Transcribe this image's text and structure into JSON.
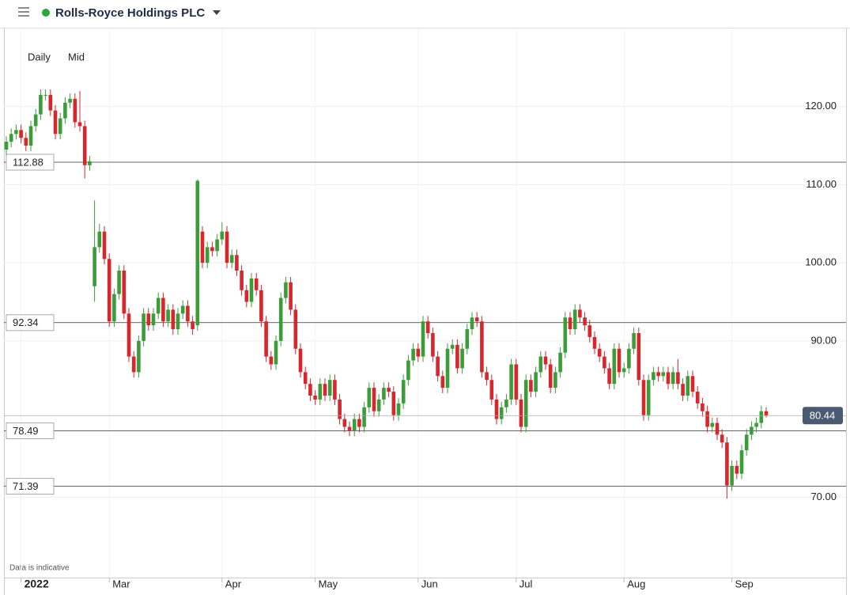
{
  "header": {
    "title": "Rolls-Royce Holdings PLC"
  },
  "chart_data": {
    "type": "candlestick",
    "interval": "Daily",
    "price_type": "Mid",
    "note": "Data is indicative",
    "up_color": "#3d9c3a",
    "down_color": "#d8262d",
    "ylim": [
      59.7,
      129.9
    ],
    "yticks": [
      {
        "value": 70,
        "label": "70.00"
      },
      {
        "value": 90,
        "label": "90.00"
      },
      {
        "value": 100,
        "label": "100.00"
      },
      {
        "value": 110,
        "label": "110.00"
      },
      {
        "value": 120,
        "label": "120.00"
      }
    ],
    "xticks": [
      {
        "value": 3,
        "label": "2022"
      },
      {
        "value": 21,
        "label": "Mar"
      },
      {
        "value": 44,
        "label": "Apr"
      },
      {
        "value": 63,
        "label": "May"
      },
      {
        "value": 84,
        "label": "Jun"
      },
      {
        "value": 104,
        "label": "Jul"
      },
      {
        "value": 126,
        "label": "Aug"
      },
      {
        "value": 148,
        "label": "Sep"
      }
    ],
    "levels": [
      112.88,
      92.34,
      78.49,
      71.39
    ],
    "last_price": 80.44,
    "ohlc": [
      [
        114.5,
        116.2,
        113.8,
        115.5
      ],
      [
        115.5,
        117.2,
        114.8,
        116.5
      ],
      [
        116.5,
        117.7,
        115.8,
        117
      ],
      [
        117,
        117.7,
        115.3,
        116
      ],
      [
        116,
        116.7,
        114.3,
        115
      ],
      [
        115,
        118.2,
        114.3,
        117.5
      ],
      [
        117.5,
        119.7,
        116.8,
        119
      ],
      [
        119,
        122.2,
        118.3,
        121.5
      ],
      [
        121.5,
        122.2,
        120.8,
        121.5
      ],
      [
        121.5,
        122.2,
        118.8,
        119.5
      ],
      [
        119.5,
        120.2,
        115.8,
        116.5
      ],
      [
        116.5,
        119.2,
        115.8,
        118.5
      ],
      [
        118.5,
        121.2,
        117.8,
        120.5
      ],
      [
        120.5,
        121.7,
        119.8,
        121
      ],
      [
        121,
        121.7,
        117.3,
        118
      ],
      [
        118,
        122,
        116.8,
        117.5
      ],
      [
        117.5,
        118.2,
        110.8,
        112.5
      ],
      [
        112.5,
        113.7,
        111.8,
        113
      ],
      [
        97,
        108,
        95,
        102
      ],
      [
        102,
        105,
        101.3,
        104
      ],
      [
        104,
        104.7,
        99.8,
        100.5
      ],
      [
        100.5,
        101.2,
        91.8,
        92.5
      ],
      [
        92.5,
        96.7,
        91.8,
        96
      ],
      [
        96,
        99.7,
        95.3,
        99
      ],
      [
        99,
        99.7,
        92.8,
        93.5
      ],
      [
        93.5,
        94.2,
        87.3,
        88
      ],
      [
        88,
        88.7,
        85.3,
        86
      ],
      [
        86,
        90.7,
        85.3,
        90
      ],
      [
        90,
        94.2,
        89.3,
        93.5
      ],
      [
        93.5,
        94.2,
        91.3,
        92
      ],
      [
        92,
        94.2,
        91.3,
        93.5
      ],
      [
        93.5,
        96.2,
        92.8,
        95.5
      ],
      [
        95.5,
        96.2,
        91.8,
        92.5
      ],
      [
        92.5,
        94.7,
        91.8,
        94
      ],
      [
        94,
        94.7,
        90.8,
        91.5
      ],
      [
        91.5,
        94.2,
        90.8,
        93.5
      ],
      [
        93.5,
        95.2,
        92.8,
        94.5
      ],
      [
        94.5,
        95.2,
        91.8,
        92.5
      ],
      [
        92.5,
        93.2,
        90.8,
        91.5
      ],
      [
        92,
        110.7,
        91.3,
        110.5
      ],
      [
        104,
        104.7,
        99.3,
        100
      ],
      [
        100,
        102.7,
        99.3,
        102
      ],
      [
        102,
        102.7,
        100.8,
        101.5
      ],
      [
        101.5,
        103.7,
        100.8,
        103
      ],
      [
        103,
        105.2,
        102.3,
        104
      ],
      [
        104,
        104.7,
        99.3,
        100
      ],
      [
        100,
        101.7,
        99.3,
        101
      ],
      [
        101,
        101.7,
        98.3,
        99
      ],
      [
        99,
        99.7,
        95.8,
        96.5
      ],
      [
        96.5,
        97.2,
        94.3,
        95
      ],
      [
        95,
        98.7,
        94.3,
        98
      ],
      [
        98,
        98.7,
        95.8,
        96.5
      ],
      [
        96.5,
        97.2,
        91.8,
        92.5
      ],
      [
        92.5,
        93.2,
        87.3,
        88
      ],
      [
        88,
        88.7,
        86.3,
        87
      ],
      [
        87,
        90.7,
        86.3,
        90
      ],
      [
        90,
        96.2,
        89.3,
        95.5
      ],
      [
        95.5,
        98.2,
        94.8,
        97.5
      ],
      [
        97.5,
        98.2,
        93.3,
        94
      ],
      [
        94,
        94.7,
        88.3,
        89
      ],
      [
        89,
        89.7,
        85.3,
        86
      ],
      [
        86,
        86.7,
        83.8,
        84.5
      ],
      [
        84.5,
        85.2,
        82.3,
        83
      ],
      [
        83,
        83.7,
        81.8,
        82.5
      ],
      [
        82.5,
        85.2,
        81.8,
        84.5
      ],
      [
        84.5,
        85.2,
        82.3,
        83
      ],
      [
        83,
        85.7,
        82.3,
        85
      ],
      [
        85,
        85.7,
        81.8,
        82.5
      ],
      [
        82.5,
        83.2,
        79.3,
        80
      ],
      [
        80,
        80.7,
        78.3,
        79
      ],
      [
        79,
        79.7,
        77.8,
        78.5
      ],
      [
        78.5,
        80.7,
        77.8,
        80
      ],
      [
        80,
        80.7,
        78.3,
        79
      ],
      [
        79,
        82.2,
        78.3,
        81.5
      ],
      [
        81.5,
        84.7,
        80.8,
        84
      ],
      [
        84,
        84.7,
        80.3,
        81
      ],
      [
        81,
        83.2,
        80.3,
        82.5
      ],
      [
        82.5,
        84.7,
        81.8,
        84
      ],
      [
        84,
        84.7,
        82.8,
        83.5
      ],
      [
        83.5,
        84.2,
        79.8,
        80.5
      ],
      [
        80.5,
        82.7,
        79.8,
        82
      ],
      [
        82,
        85.7,
        81.3,
        85
      ],
      [
        85,
        88.2,
        84.3,
        87.5
      ],
      [
        87.5,
        89.7,
        86.8,
        89
      ],
      [
        89,
        89.7,
        87.3,
        88
      ],
      [
        88,
        93.2,
        87.3,
        92.5
      ],
      [
        92.5,
        93.2,
        90.3,
        91
      ],
      [
        91,
        91.7,
        87.3,
        88
      ],
      [
        88,
        88.7,
        84.8,
        85.5
      ],
      [
        85.5,
        86.2,
        83.3,
        84
      ],
      [
        84,
        89.7,
        83.3,
        89
      ],
      [
        89,
        90.2,
        88.3,
        89.5
      ],
      [
        89.5,
        90.2,
        85.8,
        86.5
      ],
      [
        86.5,
        89.7,
        85.8,
        89
      ],
      [
        89,
        92.2,
        88.3,
        91.5
      ],
      [
        91.5,
        93.7,
        90.8,
        93
      ],
      [
        93,
        93.7,
        91.8,
        92.5
      ],
      [
        92.5,
        93.2,
        85.3,
        86
      ],
      [
        86,
        86.7,
        84.3,
        85
      ],
      [
        85,
        85.7,
        81.8,
        82.5
      ],
      [
        82.5,
        83.2,
        79.3,
        80
      ],
      [
        80,
        82.2,
        79.3,
        81.5
      ],
      [
        81.5,
        83.2,
        80.8,
        82.5
      ],
      [
        82.5,
        87.7,
        81.8,
        87
      ],
      [
        87,
        87.7,
        81.8,
        82.5
      ],
      [
        82.5,
        83.2,
        78.3,
        79
      ],
      [
        79,
        85.7,
        78.3,
        85
      ],
      [
        85,
        85.7,
        82.8,
        83.5
      ],
      [
        83.5,
        86.7,
        82.8,
        86
      ],
      [
        86,
        88.7,
        85.3,
        88
      ],
      [
        88,
        88.7,
        86.3,
        87
      ],
      [
        87,
        87.7,
        83.3,
        84
      ],
      [
        84,
        86.7,
        83.3,
        86
      ],
      [
        86,
        89.2,
        85.3,
        88.5
      ],
      [
        88.5,
        93.7,
        87.8,
        93
      ],
      [
        93,
        93.7,
        90.8,
        91.5
      ],
      [
        91.5,
        94.7,
        90.8,
        94
      ],
      [
        94,
        94.7,
        92.3,
        93
      ],
      [
        93,
        93.7,
        91.3,
        92
      ],
      [
        92,
        92.7,
        89.8,
        90.5
      ],
      [
        90.5,
        91.2,
        88.3,
        89
      ],
      [
        89,
        89.7,
        87.3,
        88
      ],
      [
        88,
        88.7,
        85.8,
        86.5
      ],
      [
        86.5,
        87.2,
        83.8,
        84.5
      ],
      [
        84.5,
        89.7,
        83.8,
        89
      ],
      [
        89,
        89.7,
        85.3,
        86
      ],
      [
        86,
        87.2,
        85.3,
        86.5
      ],
      [
        86.5,
        89.7,
        85.8,
        89
      ],
      [
        89,
        91.7,
        88.3,
        91
      ],
      [
        91,
        91.7,
        84.3,
        85
      ],
      [
        85,
        85.7,
        79.8,
        80.5
      ],
      [
        80.5,
        85.7,
        79.8,
        85
      ],
      [
        85,
        86.7,
        84.3,
        86
      ],
      [
        86,
        86.7,
        84.8,
        85.5
      ],
      [
        85.5,
        86.7,
        84.8,
        86
      ],
      [
        86,
        86.7,
        83.8,
        84.5
      ],
      [
        84.5,
        86.7,
        83.8,
        86
      ],
      [
        86,
        87.7,
        83.8,
        84.5
      ],
      [
        84.5,
        85.2,
        82.3,
        83
      ],
      [
        83,
        86.2,
        82.3,
        85.5
      ],
      [
        85.5,
        86.2,
        82.8,
        83.5
      ],
      [
        83.5,
        84.2,
        81.3,
        82
      ],
      [
        82,
        82.7,
        80.3,
        81
      ],
      [
        81,
        81.7,
        78.3,
        79
      ],
      [
        79,
        80.2,
        78.3,
        79.5
      ],
      [
        79.5,
        80.2,
        77.3,
        78
      ],
      [
        78,
        78.7,
        76.3,
        77
      ],
      [
        77,
        77.7,
        69.8,
        71.5
      ],
      [
        71.5,
        74.7,
        70.8,
        74
      ],
      [
        74,
        74.7,
        72.3,
        73
      ],
      [
        73,
        76.7,
        72.3,
        76
      ],
      [
        76,
        78.7,
        75.3,
        78
      ],
      [
        78,
        79.7,
        77.3,
        79
      ],
      [
        79,
        80.2,
        78.3,
        79.5
      ],
      [
        79.5,
        81.7,
        78.8,
        81
      ],
      [
        81,
        81.5,
        80.2,
        80.44
      ]
    ]
  }
}
